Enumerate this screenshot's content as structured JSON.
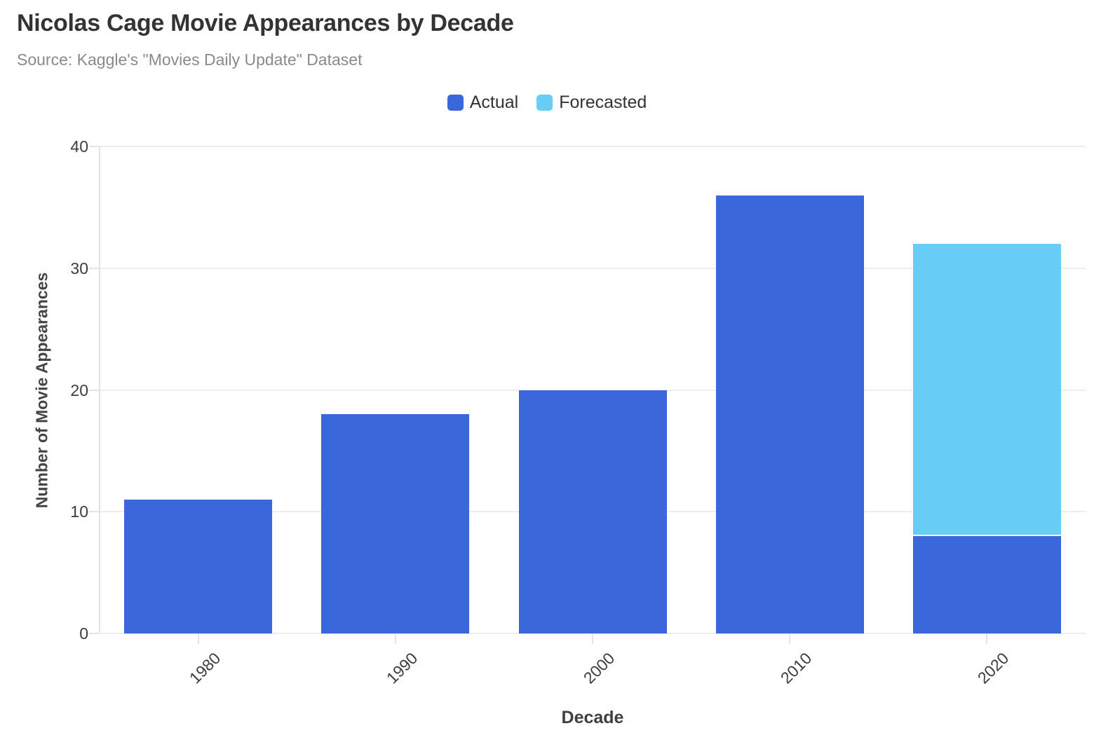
{
  "chart_data": {
    "type": "bar",
    "stacked": true,
    "title": "Nicolas Cage Movie Appearances by Decade",
    "subtitle": "Source: Kaggle's \"Movies Daily Update\" Dataset",
    "categories": [
      "1980",
      "1990",
      "2000",
      "2010",
      "2020"
    ],
    "series": [
      {
        "name": "Actual",
        "color": "#3B67DA",
        "values": [
          11,
          18,
          20,
          36,
          8
        ]
      },
      {
        "name": "Forecasted",
        "color": "#67CDF4",
        "values": [
          0,
          0,
          0,
          0,
          24
        ]
      }
    ],
    "xlabel": "Decade",
    "ylabel": "Number of Movie Appearances",
    "ylim": [
      0,
      40
    ],
    "yticks": [
      0,
      10,
      20,
      30,
      40
    ],
    "legend_position": "top-center",
    "grid": true,
    "segment_gap_color": "#ffffff"
  }
}
